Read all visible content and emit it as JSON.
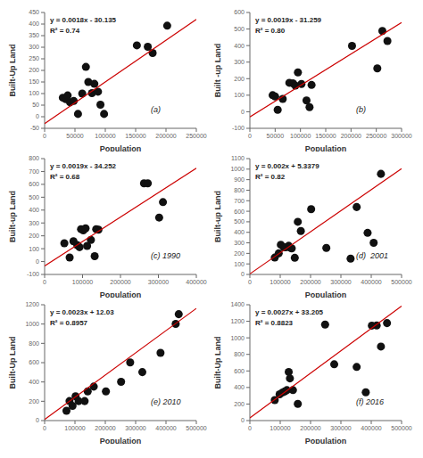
{
  "chart_data": [
    {
      "type": "scatter",
      "xlabel": "Population",
      "ylabel": "Built-Up Land",
      "annotations": [
        "y = 0.0018x - 30.135",
        "R² = 0.74",
        "(a)"
      ],
      "xlim": [
        0,
        250000
      ],
      "ylim": [
        -50,
        450
      ],
      "xticks": [
        0,
        50000,
        100000,
        150000,
        200000,
        250000
      ],
      "yticks": [
        -50,
        0,
        50,
        100,
        150,
        200,
        250,
        300,
        350,
        400,
        450
      ],
      "grid": false,
      "series": [
        {
          "type": "scatter",
          "color": "#111111",
          "x": [
            30000,
            35000,
            38000,
            42000,
            48000,
            55000,
            62000,
            68000,
            72000,
            78000,
            82000,
            88000,
            92000,
            98000,
            152000,
            170000,
            178000,
            202000
          ],
          "values": [
            82,
            76,
            92,
            62,
            68,
            12,
            100,
            215,
            150,
            102,
            142,
            108,
            52,
            12,
            308,
            302,
            275,
            393
          ]
        },
        {
          "type": "line",
          "color": "#cc0000",
          "x": [
            0,
            250000
          ],
          "values": [
            -30.135,
            419.865
          ]
        }
      ]
    },
    {
      "type": "scatter",
      "xlabel": "Population",
      "ylabel": "Built -up Land",
      "annotations": [
        "y = 0.0019x - 31.259",
        "R² = 0.80",
        "(b)"
      ],
      "xlim": [
        0,
        300000
      ],
      "ylim": [
        -100,
        600
      ],
      "xticks": [
        0,
        50000,
        100000,
        150000,
        200000,
        250000,
        300000
      ],
      "yticks": [
        -100,
        0,
        100,
        200,
        300,
        400,
        500,
        600
      ],
      "grid": false,
      "series": [
        {
          "type": "scatter",
          "color": "#111111",
          "x": [
            45000,
            50000,
            55000,
            65000,
            78000,
            85000,
            90000,
            95000,
            102000,
            112000,
            118000,
            122000,
            202000,
            252000,
            262000,
            272000
          ],
          "values": [
            100,
            92,
            12,
            78,
            175,
            172,
            158,
            238,
            168,
            68,
            28,
            162,
            398,
            262,
            488,
            428
          ]
        },
        {
          "type": "line",
          "color": "#cc0000",
          "x": [
            0,
            300000
          ],
          "values": [
            -31.259,
            538.741
          ]
        }
      ]
    },
    {
      "type": "scatter",
      "xlabel": "Population",
      "ylabel": "Built-up Land",
      "annotations": [
        "y = 0.0019x - 34.252",
        "R² = 0.68",
        "(c) 1990"
      ],
      "xlim": [
        0,
        400000
      ],
      "ylim": [
        -100,
        800
      ],
      "xticks": [
        0,
        100000,
        200000,
        300000,
        400000
      ],
      "yticks": [
        -100,
        0,
        100,
        200,
        300,
        400,
        500,
        600,
        700,
        800
      ],
      "grid": false,
      "series": [
        {
          "type": "scatter",
          "color": "#111111",
          "x": [
            52000,
            66000,
            76000,
            86000,
            92000,
            96000,
            102000,
            108000,
            112000,
            122000,
            132000,
            136000,
            142000,
            262000,
            272000,
            302000,
            312000
          ],
          "values": [
            142,
            32,
            158,
            128,
            112,
            252,
            242,
            258,
            122,
            168,
            42,
            252,
            248,
            608,
            608,
            342,
            462
          ]
        },
        {
          "type": "line",
          "color": "#cc0000",
          "x": [
            0,
            400000
          ],
          "values": [
            -34.252,
            725.748
          ]
        }
      ]
    },
    {
      "type": "scatter",
      "xlabel": "Population",
      "ylabel": "Built-up Land",
      "annotations": [
        "y = 0.002x + 5.3379",
        "R² = 0.82",
        "(d)  2001"
      ],
      "xlim": [
        0,
        500000
      ],
      "ylim": [
        0,
        1100
      ],
      "xticks": [
        0,
        100000,
        200000,
        300000,
        400000,
        500000
      ],
      "yticks": [
        0,
        100,
        200,
        300,
        400,
        500,
        600,
        700,
        800,
        900,
        1000,
        1100
      ],
      "grid": false,
      "series": [
        {
          "type": "scatter",
          "color": "#111111",
          "x": [
            82000,
            95000,
            102000,
            112000,
            118000,
            128000,
            132000,
            138000,
            148000,
            158000,
            168000,
            202000,
            252000,
            332000,
            352000,
            388000,
            408000,
            432000
          ],
          "values": [
            160,
            200,
            282,
            258,
            258,
            272,
            255,
            248,
            158,
            500,
            412,
            620,
            252,
            150,
            640,
            395,
            300,
            955
          ]
        },
        {
          "type": "line",
          "color": "#cc0000",
          "x": [
            0,
            500000
          ],
          "values": [
            5.3379,
            1005.3379
          ]
        }
      ]
    },
    {
      "type": "scatter",
      "xlabel": "Population",
      "ylabel": "Built-Up Land",
      "annotations": [
        "y = 0.0023x + 12.03",
        "R² = 0.8957",
        "(e) 2010"
      ],
      "xlim": [
        0,
        500000
      ],
      "ylim": [
        0,
        1200
      ],
      "xticks": [
        0,
        100000,
        200000,
        300000,
        400000,
        500000
      ],
      "yticks": [
        0,
        200,
        400,
        600,
        800,
        1000,
        1200
      ],
      "grid": false,
      "series": [
        {
          "type": "scatter",
          "color": "#111111",
          "x": [
            72000,
            82000,
            92000,
            102000,
            112000,
            132000,
            142000,
            162000,
            202000,
            252000,
            282000,
            322000,
            382000,
            432000,
            442000
          ],
          "values": [
            102,
            202,
            152,
            252,
            202,
            202,
            302,
            352,
            302,
            402,
            602,
            502,
            702,
            1002,
            1102
          ]
        },
        {
          "type": "line",
          "color": "#cc0000",
          "x": [
            0,
            500000
          ],
          "values": [
            12.03,
            1162.03
          ]
        }
      ]
    },
    {
      "type": "scatter",
      "xlabel": "Population",
      "ylabel": "Built-Up Land",
      "annotations": [
        "y = 0.0027x + 33.205",
        "R² = 0.8823",
        "(f) 2016"
      ],
      "xlim": [
        0,
        500000
      ],
      "ylim": [
        0,
        1400
      ],
      "xticks": [
        0,
        100000,
        200000,
        300000,
        400000,
        500000
      ],
      "yticks": [
        0,
        200,
        400,
        600,
        800,
        1000,
        1200,
        1400
      ],
      "grid": false,
      "series": [
        {
          "type": "scatter",
          "color": "#111111",
          "x": [
            82000,
            98000,
            108000,
            115000,
            122000,
            128000,
            132000,
            142000,
            158000,
            248000,
            278000,
            352000,
            382000,
            402000,
            418000,
            432000,
            452000
          ],
          "values": [
            248,
            318,
            340,
            352,
            368,
            588,
            510,
            368,
            202,
            1160,
            680,
            648,
            342,
            1148,
            1150,
            895,
            1178
          ]
        },
        {
          "type": "line",
          "color": "#cc0000",
          "x": [
            0,
            500000
          ],
          "values": [
            33.205,
            1383.205
          ]
        }
      ]
    }
  ]
}
